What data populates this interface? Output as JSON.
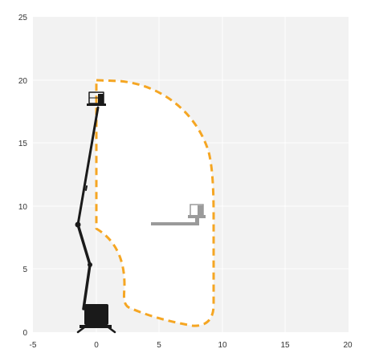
{
  "diagram": {
    "type": "working-range",
    "x_ticks": [
      "-5",
      "0",
      "5",
      "10",
      "15",
      "20"
    ],
    "y_ticks": [
      "0",
      "5",
      "10",
      "15",
      "20",
      "25"
    ],
    "x_range": [
      -5,
      20
    ],
    "y_range": [
      0,
      25
    ],
    "grid": true,
    "colors": {
      "plot_background": "#f2f2f2",
      "grid": "#ffffff",
      "envelope_fill": "#ffffff",
      "envelope_stroke": "#f5a623",
      "machine": "#1a1a1a",
      "machine_ghost": "#9a9a9a"
    }
  }
}
